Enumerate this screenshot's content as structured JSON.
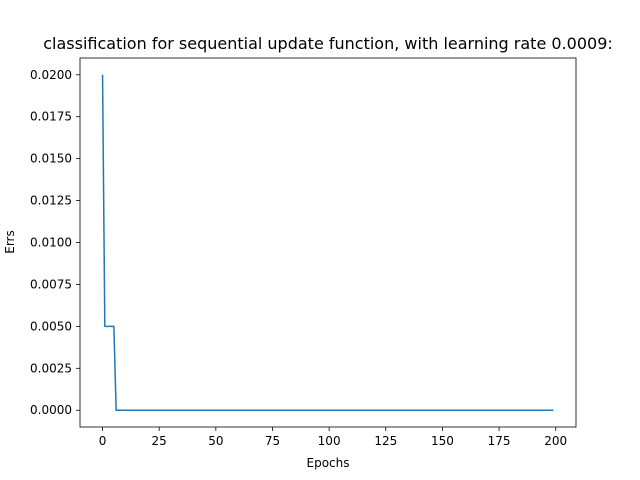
{
  "chart_data": {
    "type": "line",
    "title": "classification for sequential update function, with learning rate 0.0009:",
    "xlabel": "Epochs",
    "ylabel": "Errs",
    "xlim": [
      -9.95,
      208.95
    ],
    "ylim": [
      -0.001,
      0.021
    ],
    "xticks": [
      0,
      25,
      50,
      75,
      100,
      125,
      150,
      175,
      200
    ],
    "yticks": [
      0.0,
      0.0025,
      0.005,
      0.0075,
      0.01,
      0.0125,
      0.015,
      0.0175,
      0.02
    ],
    "xtick_labels": [
      "0",
      "25",
      "50",
      "75",
      "100",
      "125",
      "150",
      "175",
      "200"
    ],
    "ytick_labels": [
      "0.0000",
      "0.0025",
      "0.0050",
      "0.0075",
      "0.0100",
      "0.0125",
      "0.0150",
      "0.0175",
      "0.0200"
    ],
    "grid": false,
    "series": [
      {
        "color": "#1f77b4",
        "x": [
          0,
          1,
          2,
          3,
          4,
          5,
          6,
          199
        ],
        "values": [
          0.02,
          0.005,
          0.005,
          0.005,
          0.005,
          0.005,
          0.0,
          0.0
        ]
      }
    ]
  }
}
